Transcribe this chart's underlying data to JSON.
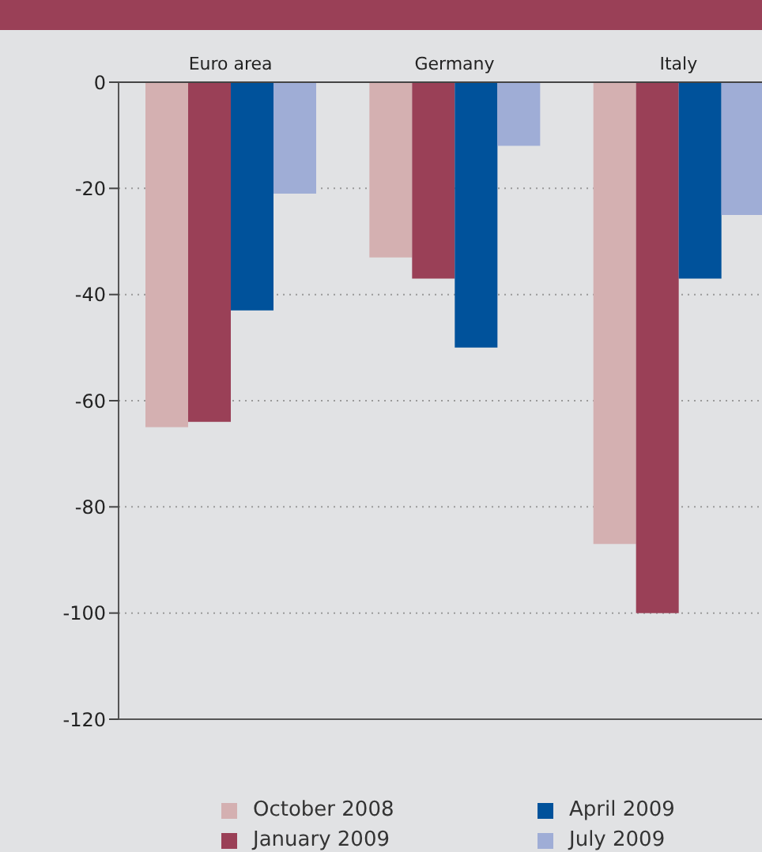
{
  "chart_data": {
    "type": "bar",
    "categories": [
      "Euro area",
      "Germany",
      "Italy"
    ],
    "series": [
      {
        "name": "October 2008",
        "color": "#d4b0b1",
        "values": [
          -65,
          -33,
          -87
        ]
      },
      {
        "name": "January 2009",
        "color": "#9a4057",
        "values": [
          -64,
          -37,
          -100
        ]
      },
      {
        "name": "April 2009",
        "color": "#00529b",
        "values": [
          -43,
          -50,
          -37
        ]
      },
      {
        "name": "July 2009",
        "color": "#9fadd6",
        "values": [
          -21,
          -12,
          -25
        ]
      }
    ],
    "ylim": [
      -120,
      0
    ],
    "yticks": [
      0,
      -20,
      -40,
      -60,
      -80,
      -100,
      -120
    ],
    "grid": "y",
    "legend": "bottom"
  }
}
